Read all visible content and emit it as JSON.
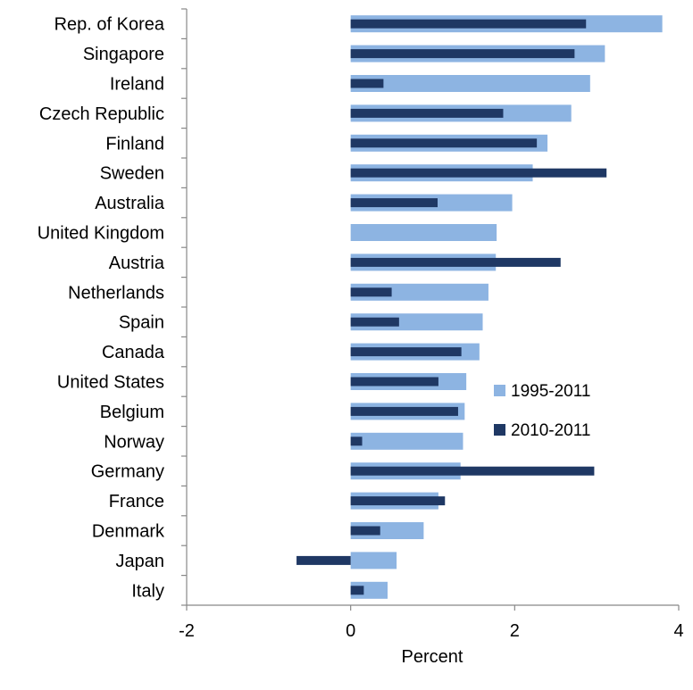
{
  "chart_data": {
    "type": "bar",
    "orientation": "horizontal",
    "categories": [
      "Rep. of Korea",
      "Singapore",
      "Ireland",
      "Czech Republic",
      "Finland",
      "Sweden",
      "Australia",
      "United Kingdom",
      "Austria",
      "Netherlands",
      "Spain",
      "Canada",
      "United States",
      "Belgium",
      "Norway",
      "Germany",
      "France",
      "Denmark",
      "Japan",
      "Italy"
    ],
    "series": [
      {
        "name": "1995-2011",
        "color": "#8db4e2",
        "values": [
          3.8,
          3.1,
          2.92,
          2.69,
          2.4,
          2.22,
          1.97,
          1.78,
          1.77,
          1.68,
          1.61,
          1.57,
          1.41,
          1.39,
          1.37,
          1.34,
          1.07,
          0.89,
          0.56,
          0.45
        ]
      },
      {
        "name": "2010-2011",
        "color": "#1f3864",
        "values": [
          2.87,
          2.73,
          0.4,
          1.86,
          2.27,
          3.12,
          1.06,
          0.0,
          2.56,
          0.5,
          0.59,
          1.35,
          1.07,
          1.31,
          0.14,
          2.97,
          1.15,
          0.36,
          -0.66,
          0.16
        ]
      }
    ],
    "xlabel": "Percent",
    "xlim": [
      -2,
      4
    ],
    "xticks": [
      "-2",
      "0",
      "2",
      "4"
    ],
    "grid": false,
    "legend_position": "right-middle"
  }
}
